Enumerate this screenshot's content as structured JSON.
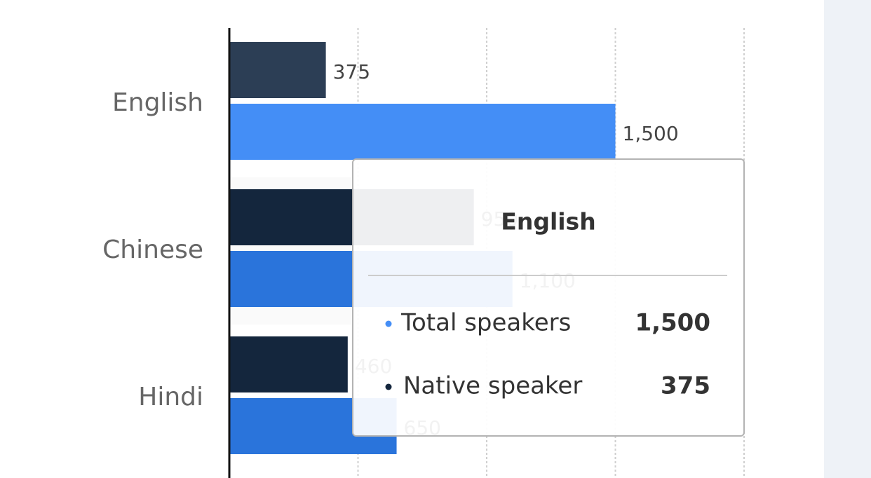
{
  "chart_data": {
    "type": "bar",
    "orientation": "horizontal",
    "categories": [
      "English",
      "Chinese",
      "Hindi"
    ],
    "series": [
      {
        "name": "Native speaker",
        "color": "#14263d",
        "values": [
          375,
          950,
          460
        ],
        "value_labels": [
          "375",
          "950",
          "460"
        ]
      },
      {
        "name": "Total speakers",
        "color": "#2a74db",
        "values": [
          1500,
          1100,
          650
        ],
        "value_labels": [
          "1,500",
          "1,100",
          "650"
        ]
      }
    ],
    "xlim": [
      0,
      2000
    ],
    "xticks": [
      500,
      1000,
      1500,
      2000
    ],
    "grid": true
  }
}
